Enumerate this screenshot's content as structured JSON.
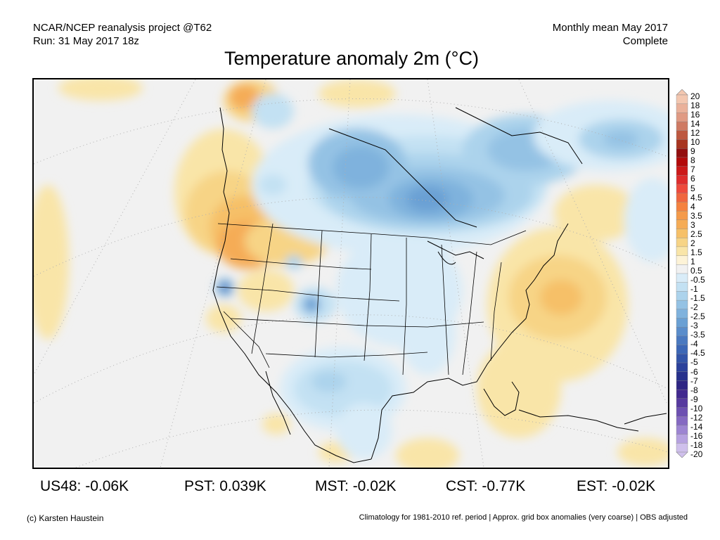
{
  "header": {
    "line1_left": "NCAR/NCEP reanalysis project @T62",
    "line2_left": "Run: 31 May 2017 18z",
    "line1_right": "Monthly mean May 2017",
    "line2_right": "Complete"
  },
  "title": "Temperature anomaly 2m (°C)",
  "legend": {
    "levels": [
      "20",
      "18",
      "16",
      "14",
      "12",
      "10",
      "9",
      "8",
      "7",
      "6",
      "5",
      "4.5",
      "4",
      "3.5",
      "3",
      "2.5",
      "2",
      "1.5",
      "1",
      "0.5",
      "-0.5",
      "-1",
      "-1.5",
      "-2",
      "-2.5",
      "-3",
      "-3.5",
      "-4",
      "-4.5",
      "-5",
      "-6",
      "-7",
      "-8",
      "-9",
      "-10",
      "-12",
      "-14",
      "-16",
      "-18",
      "-20"
    ],
    "colors": [
      "#f3c7b0",
      "#eab19a",
      "#e09a83",
      "#cf7a63",
      "#bd5840",
      "#a83520",
      "#930f0f",
      "#b30b0b",
      "#cc1a1a",
      "#de2d2d",
      "#ee4a3d",
      "#f0663f",
      "#f5823f",
      "#f49a4a",
      "#f5ac56",
      "#f6c068",
      "#f7d486",
      "#f9e5a8",
      "#fdf3d7",
      "#f1f1f1",
      "#d9ecf8",
      "#c3e1f3",
      "#acd3ec",
      "#94c2e4",
      "#7fb2dd",
      "#6aa0d4",
      "#5a8dcb",
      "#4a79c0",
      "#3c67b6",
      "#3254a8",
      "#2b419b",
      "#27318c",
      "#2f2684",
      "#42298f",
      "#573a9f",
      "#6d50b1",
      "#8569c2",
      "#9d85d2",
      "#b6a2e0",
      "#cfc0ec"
    ]
  },
  "stats": [
    {
      "label": "US48:",
      "value": "-0.06K"
    },
    {
      "label": "PST:",
      "value": "0.039K"
    },
    {
      "label": "MST:",
      "value": "-0.02K"
    },
    {
      "label": "CST:",
      "value": "-0.77K"
    },
    {
      "label": "EST:",
      "value": "-0.02K"
    }
  ],
  "footer": {
    "left": "(c) Karsten Haustein",
    "right": "Climatology for 1981-2010 ref. period | Approx. grid box anomalies (very coarse) | OBS adjusted"
  }
}
